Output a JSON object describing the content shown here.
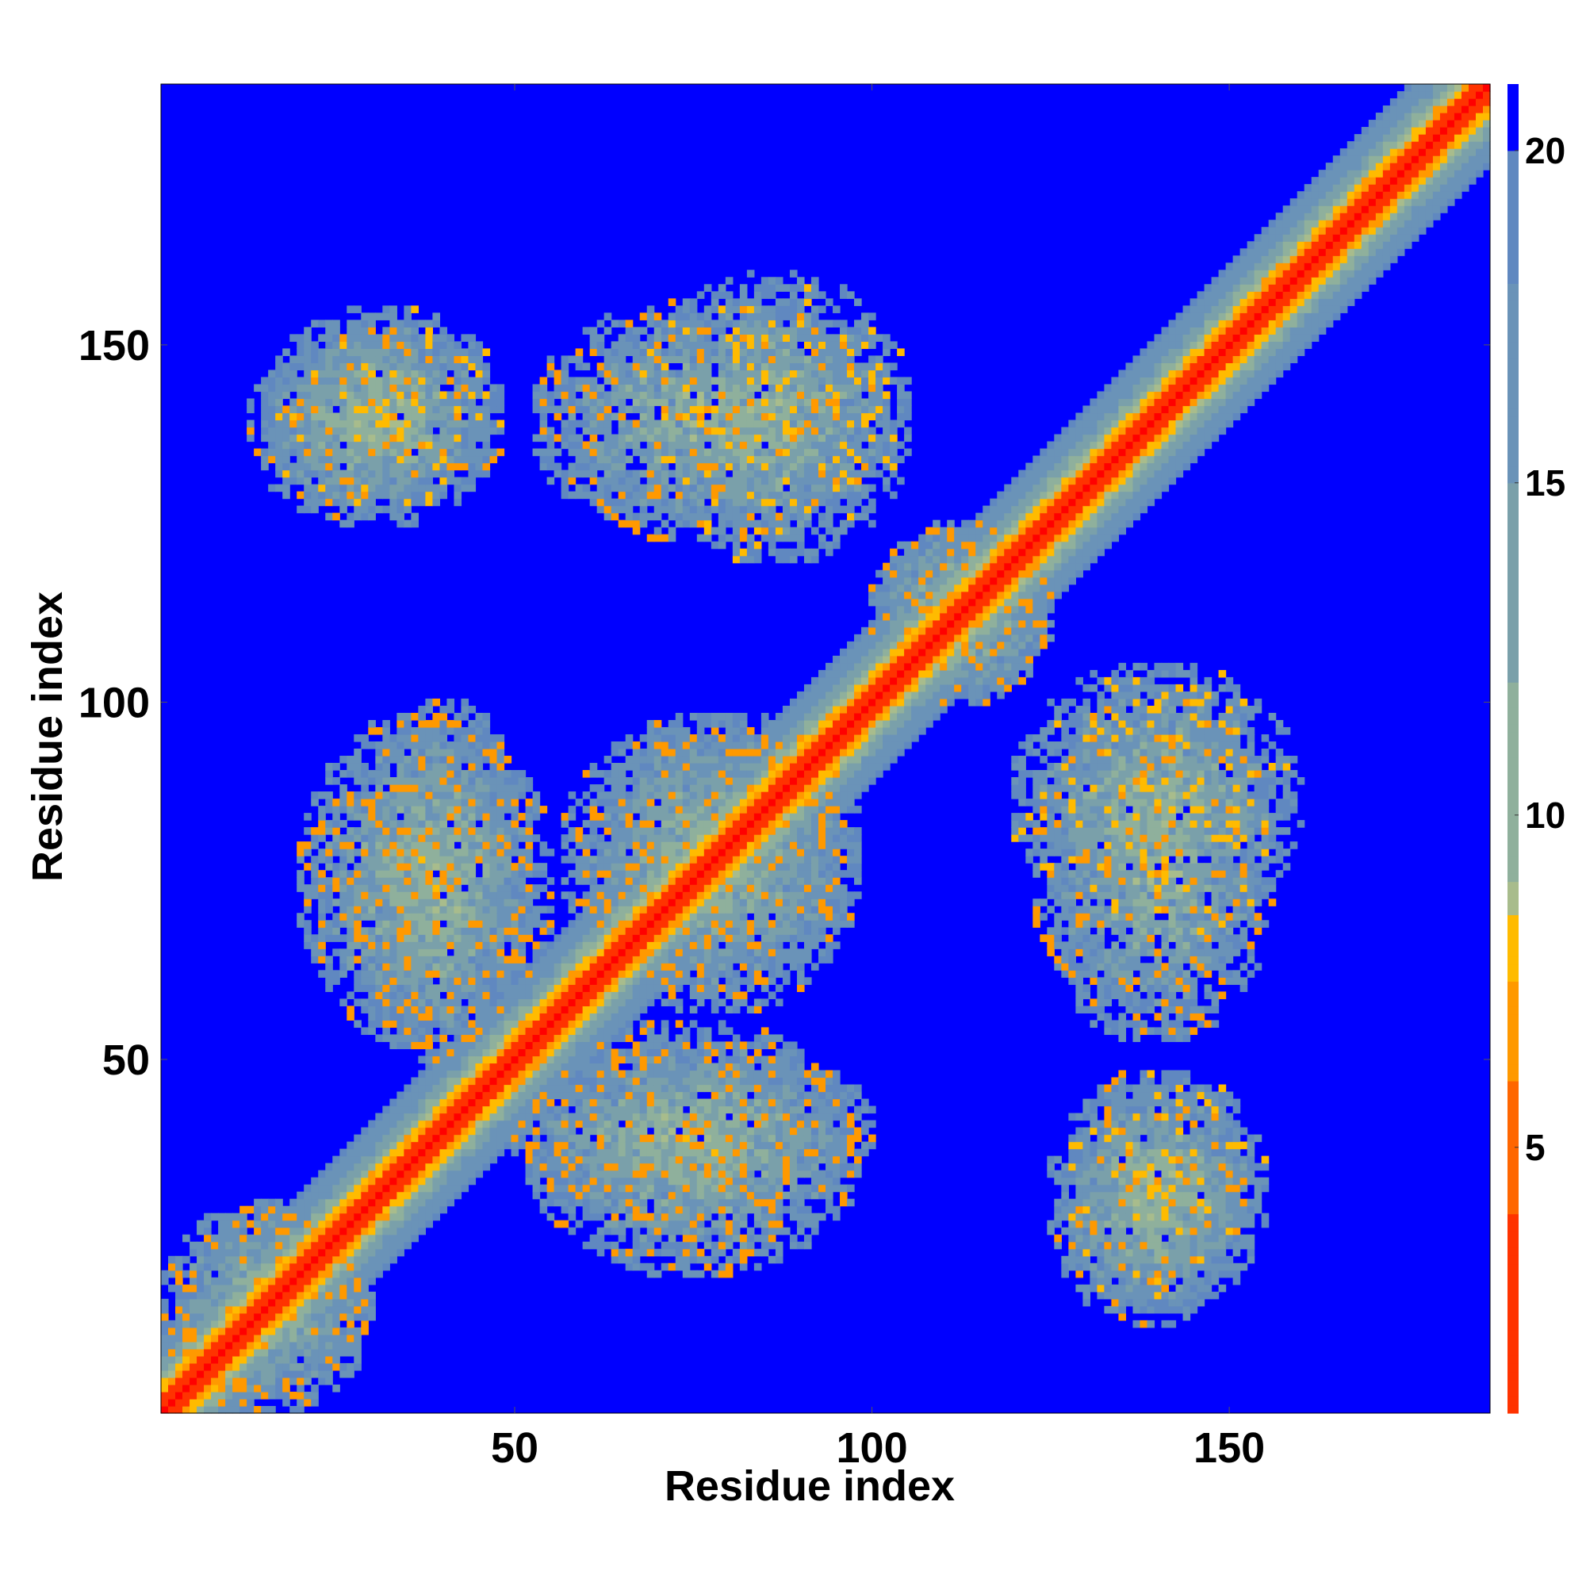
{
  "chart_data": {
    "type": "heatmap",
    "title": "",
    "xlabel": "Residue index",
    "ylabel": "Residue index",
    "xlim": [
      1,
      186
    ],
    "ylim": [
      1,
      186
    ],
    "x_ticks": [
      50,
      100,
      150
    ],
    "y_ticks": [
      50,
      100,
      150
    ],
    "x_tick_labels": [
      "50",
      "100",
      "150"
    ],
    "y_tick_labels": [
      "50",
      "100",
      "150"
    ],
    "grid": false,
    "legend": "none",
    "colorbar": {
      "placement": "right",
      "range": [
        1,
        21
      ],
      "ticks": [
        5,
        10,
        15,
        20
      ],
      "tick_labels": [
        "5",
        "10",
        "15",
        "20"
      ],
      "color_stops": [
        {
          "value": 1,
          "color": "#ff0000"
        },
        {
          "value": 4,
          "color": "#ff3300"
        },
        {
          "value": 6,
          "color": "#ff6600"
        },
        {
          "value": 7.5,
          "color": "#ff9900"
        },
        {
          "value": 8.5,
          "color": "#ffbb00"
        },
        {
          "value": 9,
          "color": "#a8bc8c"
        },
        {
          "value": 12,
          "color": "#8fb09c"
        },
        {
          "value": 15,
          "color": "#7aa0aa"
        },
        {
          "value": 18,
          "color": "#6a93b8"
        },
        {
          "value": 20,
          "color": "#6088c0"
        },
        {
          "value": 20.01,
          "color": "#0000ff"
        },
        {
          "value": 21,
          "color": "#0000ff"
        }
      ]
    },
    "description_values": {
      "diagonal_distance": 1,
      "background_distance": 21,
      "contact_regions": [
        {
          "x": [
            13,
            48
          ],
          "y": [
            125,
            153
          ],
          "min_distance": 5
        },
        {
          "x": [
            53,
            100
          ],
          "y": [
            123,
            156
          ],
          "min_distance": 5
        },
        {
          "x": [
            20,
            55
          ],
          "y": [
            52,
            98
          ],
          "min_distance": 5
        },
        {
          "x": [
            57,
            98
          ],
          "y": [
            60,
            98
          ],
          "min_distance": 5
        },
        {
          "x": [
            50,
            100
          ],
          "y": [
            28,
            52
          ],
          "min_distance": 5
        },
        {
          "x": [
            120,
            160
          ],
          "y": [
            68,
            105
          ],
          "min_distance": 6
        },
        {
          "x": [
            127,
            155
          ],
          "y": [
            15,
            48
          ],
          "min_distance": 6
        },
        {
          "x": [
            100,
            125
          ],
          "y": [
            100,
            125
          ],
          "min_distance": 5
        },
        {
          "x": [
            1,
            30
          ],
          "y": [
            1,
            30
          ],
          "min_distance": 5
        }
      ]
    }
  }
}
